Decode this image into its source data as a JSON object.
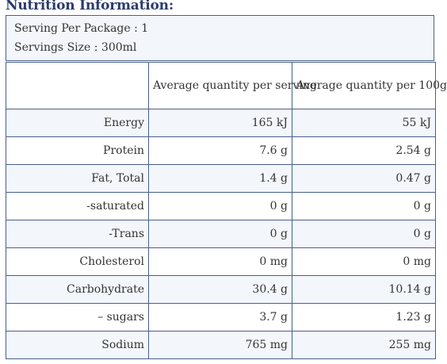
{
  "title": "Nutrition Information:",
  "serving": {
    "per_package": "Serving Per Package : 1",
    "size": "Servings Size : 300ml"
  },
  "table": {
    "headers": {
      "nutrient": "",
      "per_serving": "Average quantity per serving",
      "per_100g": "Average quantity per 100g"
    },
    "rows": [
      {
        "nutrient": "Energy",
        "per_serving": "165 kJ",
        "per_100g": "55 kJ"
      },
      {
        "nutrient": "Protein",
        "per_serving": "7.6 g",
        "per_100g": "2.54 g"
      },
      {
        "nutrient": "Fat, Total",
        "per_serving": "1.4 g",
        "per_100g": "0.47 g"
      },
      {
        "nutrient": "-saturated",
        "per_serving": "0 g",
        "per_100g": "0 g"
      },
      {
        "nutrient": "-Trans",
        "per_serving": "0 g",
        "per_100g": "0 g"
      },
      {
        "nutrient": "Cholesterol",
        "per_serving": "0 mg",
        "per_100g": "0 mg"
      },
      {
        "nutrient": "Carbohydrate",
        "per_serving": "30.4 g",
        "per_100g": "10.14 g"
      },
      {
        "nutrient": "– sugars",
        "per_serving": "3.7 g",
        "per_100g": "1.23 g"
      },
      {
        "nutrient": "Sodium",
        "per_serving": "765 mg",
        "per_100g": "255 mg"
      }
    ]
  },
  "colors": {
    "title": "#2b3c6b",
    "border": "#4a5f8a",
    "shaded_row": "#f3f7fc"
  }
}
